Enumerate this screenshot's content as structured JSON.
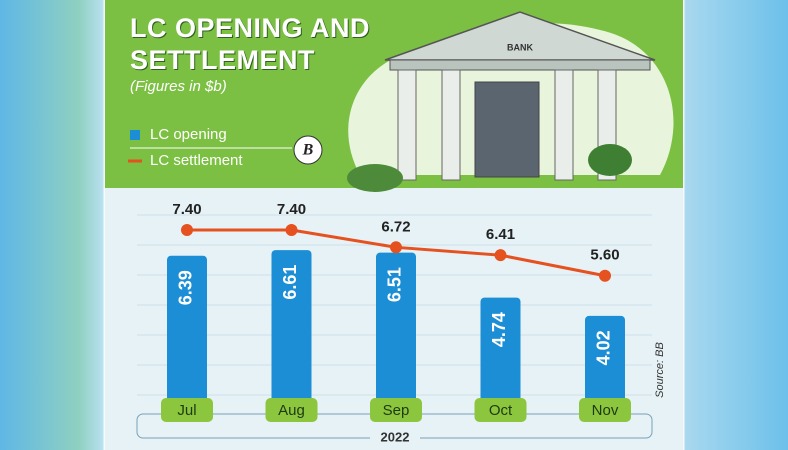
{
  "chart_data": {
    "type": "bar",
    "title": "LC OPENING AND SETTLEMENT",
    "subtitle": "(Figures in $b)",
    "categories": [
      "Jul",
      "Aug",
      "Sep",
      "Oct",
      "Nov"
    ],
    "x_group_label": "2022",
    "source": "Source: BB",
    "illustration_text": "BANK",
    "logo_text": "B",
    "series": [
      {
        "name": "LC opening",
        "type": "bar",
        "color": "#1b8ed6",
        "values": [
          6.39,
          6.61,
          6.51,
          4.74,
          4.02
        ]
      },
      {
        "name": "LC settlement",
        "type": "line",
        "color": "#e5511f",
        "values": [
          7.4,
          7.4,
          6.72,
          6.41,
          5.6
        ],
        "value_labels": [
          "7.40",
          "7.40",
          "6.72",
          "6.41",
          "5.60"
        ]
      }
    ]
  }
}
